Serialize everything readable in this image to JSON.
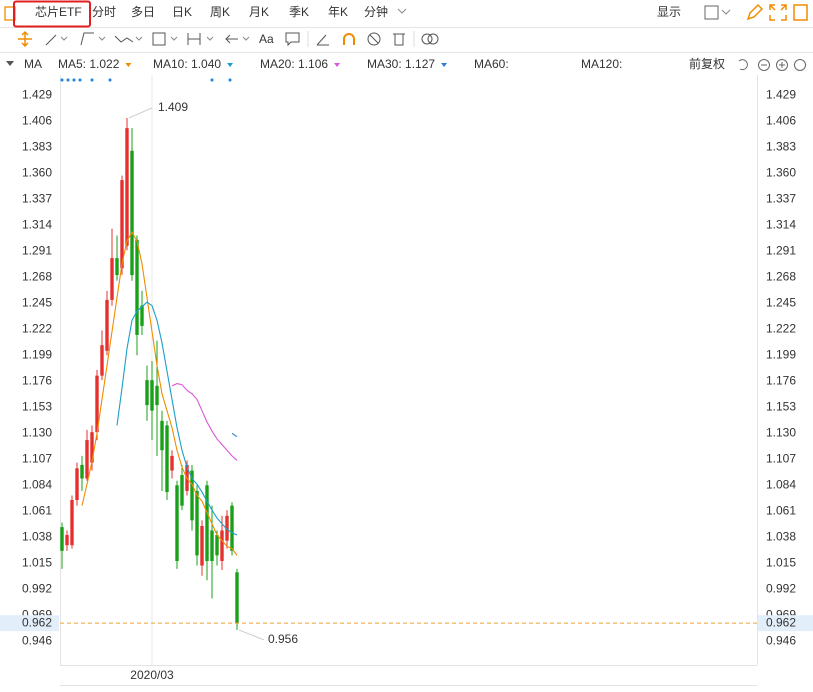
{
  "toolbar": {
    "tabs": [
      "芯片ETF",
      "分时",
      "多日",
      "日K",
      "周K",
      "月K",
      "季K",
      "年K",
      "分钟"
    ],
    "active": 3,
    "display": "显示"
  },
  "drawing_tools": {
    "text_tool": "Aa"
  },
  "indicator_bar": {
    "name": "MA",
    "adjust": "前复权"
  },
  "chart_data": {
    "type": "candlestick",
    "categories": [
      null,
      null,
      null,
      null,
      null,
      null,
      null,
      null,
      null,
      null,
      null,
      null,
      null,
      null,
      null,
      null,
      null,
      null,
      "2020/03",
      null,
      null,
      null,
      null,
      null,
      null,
      null,
      null,
      null,
      null,
      null,
      null,
      null,
      null,
      null,
      null,
      null
    ],
    "open": [
      1.047,
      1.031,
      1.031,
      1.071,
      1.102,
      1.09,
      1.104,
      1.131,
      1.181,
      1.203,
      1.248,
      1.285,
      1.276,
      1.296,
      1.38,
      1.301,
      1.243,
      1.177,
      1.177,
      1.172,
      1.141,
      1.137,
      1.097,
      1.084,
      1.093,
      1.079,
      1.097,
      1.079,
      1.013,
      1.084,
      1.044,
      1.04,
      1.017,
      1.035,
      1.066,
      1.007
    ],
    "high": [
      1.051,
      1.044,
      1.075,
      1.104,
      1.11,
      1.133,
      1.137,
      1.186,
      1.221,
      1.256,
      1.311,
      1.305,
      1.358,
      1.409,
      1.4,
      1.305,
      1.256,
      1.19,
      1.194,
      1.212,
      1.15,
      1.141,
      1.115,
      1.088,
      1.102,
      1.106,
      1.102,
      1.084,
      1.053,
      1.088,
      1.066,
      1.044,
      1.057,
      1.062,
      1.069,
      1.01
    ],
    "low": [
      1.01,
      1.026,
      1.028,
      1.066,
      1.079,
      1.088,
      1.097,
      1.124,
      1.177,
      1.199,
      1.243,
      1.265,
      1.27,
      1.292,
      1.265,
      1.199,
      1.217,
      1.141,
      1.124,
      1.11,
      1.079,
      1.071,
      1.09,
      1.01,
      1.062,
      1.075,
      1.044,
      1.013,
      1.004,
      1.0,
      0.984,
      1.013,
      1.009,
      1.028,
      1.022,
      0.956
    ],
    "close": [
      1.026,
      1.04,
      1.071,
      1.099,
      1.09,
      1.124,
      1.131,
      1.181,
      1.208,
      1.248,
      1.285,
      1.27,
      1.354,
      1.4,
      1.27,
      1.217,
      1.225,
      1.155,
      1.15,
      1.155,
      1.115,
      1.078,
      1.11,
      1.017,
      1.066,
      1.102,
      1.053,
      1.022,
      1.048,
      1.017,
      1.017,
      1.022,
      1.044,
      1.057,
      1.026,
      0.962
    ],
    "up_color": "#e5302f",
    "down_color": "#18a018",
    "series": [
      {
        "name": "MA5: 1.022",
        "color": "#f08c00",
        "values": [
          null,
          null,
          null,
          null,
          1.066,
          1.085,
          1.105,
          1.13,
          1.16,
          1.19,
          1.22,
          1.25,
          1.28,
          1.3,
          1.308,
          1.3,
          1.28,
          1.25,
          1.22,
          1.19,
          1.165,
          1.15,
          1.135,
          1.115,
          1.1,
          1.09,
          1.085,
          1.075,
          1.07,
          1.06,
          1.05,
          1.04,
          1.035,
          1.03,
          1.028,
          1.022
        ]
      },
      {
        "name": "MA10: 1.040",
        "color": "#1a9fc9",
        "values": [
          null,
          null,
          null,
          null,
          null,
          null,
          null,
          null,
          null,
          null,
          null,
          1.137,
          1.17,
          1.205,
          1.23,
          1.238,
          1.242,
          1.246,
          1.243,
          1.23,
          1.21,
          1.185,
          1.16,
          1.135,
          1.115,
          1.1,
          1.09,
          1.085,
          1.078,
          1.07,
          1.062,
          1.055,
          1.05,
          1.045,
          1.042,
          1.04
        ]
      },
      {
        "name": "MA20: 1.106",
        "color": "#d957d9",
        "values": [
          null,
          null,
          null,
          null,
          null,
          null,
          null,
          null,
          null,
          null,
          null,
          null,
          null,
          null,
          null,
          null,
          null,
          null,
          null,
          null,
          null,
          null,
          1.172,
          1.174,
          1.173,
          1.168,
          1.165,
          1.16,
          1.15,
          1.14,
          1.132,
          1.125,
          1.12,
          1.115,
          1.11,
          1.106
        ]
      },
      {
        "name": "MA30: 1.127",
        "color": "#2d7fd0",
        "values": [
          null,
          null,
          null,
          null,
          null,
          null,
          null,
          null,
          null,
          null,
          null,
          null,
          null,
          null,
          null,
          null,
          null,
          null,
          null,
          null,
          null,
          null,
          null,
          null,
          null,
          null,
          null,
          null,
          null,
          null,
          null,
          null,
          null,
          null,
          1.13,
          1.127
        ]
      },
      {
        "name": "MA60:",
        "color": "#2ab56b",
        "values": [
          null,
          null,
          null,
          null,
          null,
          null,
          null,
          null,
          null,
          null,
          null,
          null,
          null,
          null,
          null,
          null,
          null,
          null,
          null,
          null,
          null,
          null,
          null,
          null,
          null,
          null,
          null,
          null,
          null,
          null,
          null,
          null,
          null,
          null,
          null,
          null
        ]
      },
      {
        "name": "MA120:",
        "color": "#e0506a",
        "values": [
          null,
          null,
          null,
          null,
          null,
          null,
          null,
          null,
          null,
          null,
          null,
          null,
          null,
          null,
          null,
          null,
          null,
          null,
          null,
          null,
          null,
          null,
          null,
          null,
          null,
          null,
          null,
          null,
          null,
          null,
          null,
          null,
          null,
          null,
          null,
          null
        ]
      }
    ],
    "ylim": [
      0.925,
      1.447
    ],
    "yticks": [
      1.429,
      1.406,
      1.383,
      {
        "value": 1.36,
        "label": "1.360"
      },
      1.337,
      1.314,
      1.291,
      1.268,
      1.245,
      1.222,
      1.199,
      1.176,
      1.153,
      {
        "value": 1.13,
        "label": "1.130"
      },
      1.107,
      1.084,
      1.061,
      1.038,
      1.015,
      0.992,
      0.969,
      0.946
    ],
    "last_price": 0.962,
    "last_price_color": "#f0a030",
    "grid": false
  }
}
